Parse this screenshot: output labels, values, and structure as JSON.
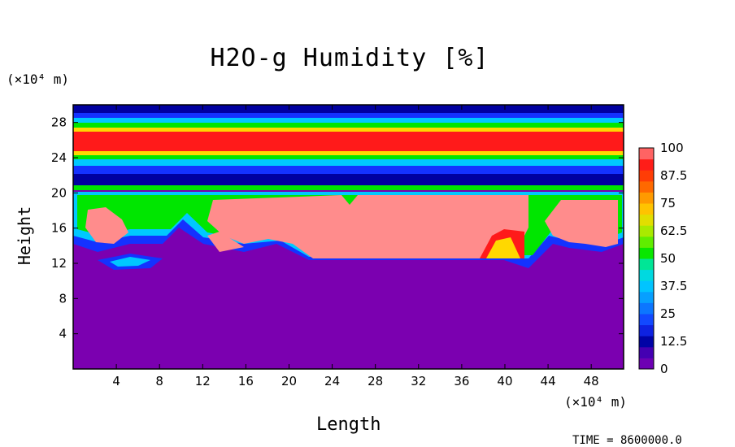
{
  "chart_data": {
    "type": "heatmap",
    "title": "H2O-g Humidity [%]",
    "xlabel": "Length",
    "ylabel": "Height",
    "x_scale_note": "(×10⁴ m)",
    "y_scale_note": "(×10⁴ m)",
    "xlim": [
      0,
      51
    ],
    "ylim": [
      0,
      30
    ],
    "x_ticks": [
      "4",
      "8",
      "12",
      "16",
      "20",
      "24",
      "28",
      "32",
      "36",
      "40",
      "44",
      "48"
    ],
    "y_ticks": [
      "4",
      "8",
      "12",
      "16",
      "20",
      "24",
      "28"
    ],
    "colorbar": {
      "labels": [
        "100",
        "87.5",
        "75",
        "62.5",
        "50",
        "37.5",
        "25",
        "12.5",
        "0"
      ],
      "range": [
        0,
        100
      ]
    },
    "footer": "TIME = 8600000.0"
  },
  "colors": {
    "bg_low": "#7b00b0",
    "cloud": "#ff8c8c",
    "red": "#ff1a1a",
    "green": "#00e600",
    "cyan": "#00c8ff",
    "blue": "#1432ff",
    "navy": "#0000a0"
  }
}
